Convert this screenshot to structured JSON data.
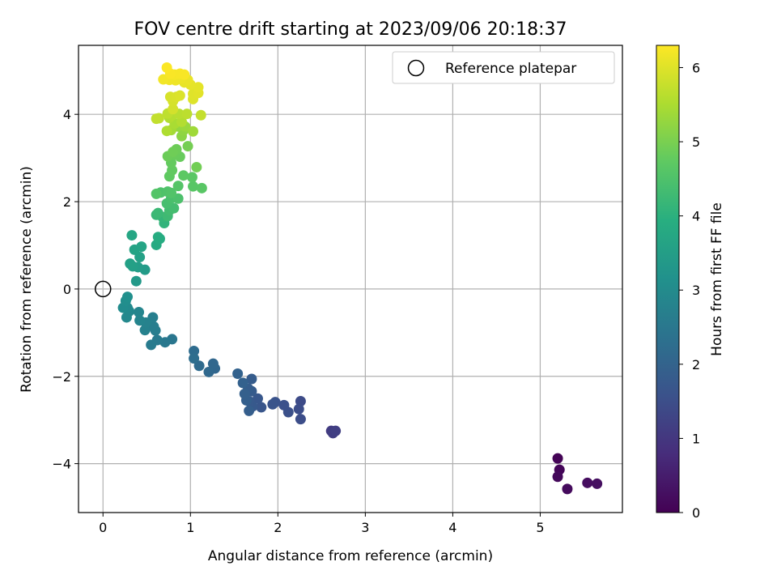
{
  "chart_data": {
    "type": "scatter",
    "title": "FOV centre drift starting at 2023/09/06 20:18:37",
    "xlabel": "Angular distance from reference (arcmin)",
    "ylabel": "Rotation from reference (arcmin)",
    "xlim": [
      -0.28,
      5.94
    ],
    "ylim": [
      -5.12,
      5.58
    ],
    "xticks": [
      0,
      1,
      2,
      3,
      4,
      5
    ],
    "yticks": [
      -4,
      -2,
      0,
      2,
      4
    ],
    "grid": true,
    "legend": {
      "label": "Reference platepar",
      "location": "top-right",
      "point": [
        0,
        0
      ]
    },
    "colorbar": {
      "label": "Hours from first FF file",
      "range": [
        0,
        6.3
      ],
      "ticks": [
        0,
        1,
        2,
        3,
        4,
        5,
        6
      ],
      "colormap": "viridis"
    },
    "points": [
      [
        5.2,
        -3.88,
        0.05
      ],
      [
        5.22,
        -4.14,
        0.08
      ],
      [
        5.2,
        -4.3,
        0.12
      ],
      [
        5.31,
        -4.58,
        0.18
      ],
      [
        5.54,
        -4.44,
        0.22
      ],
      [
        5.65,
        -4.46,
        0.25
      ],
      [
        2.61,
        -3.25,
        1.1
      ],
      [
        2.63,
        -3.3,
        1.15
      ],
      [
        2.66,
        -3.25,
        1.2
      ],
      [
        2.26,
        -2.57,
        1.45
      ],
      [
        2.24,
        -2.75,
        1.48
      ],
      [
        2.26,
        -2.98,
        1.5
      ],
      [
        2.12,
        -2.82,
        1.55
      ],
      [
        2.07,
        -2.66,
        1.58
      ],
      [
        1.97,
        -2.59,
        1.62
      ],
      [
        1.94,
        -2.64,
        1.66
      ],
      [
        1.81,
        -2.71,
        1.7
      ],
      [
        1.77,
        -2.51,
        1.73
      ],
      [
        1.71,
        -2.69,
        1.76
      ],
      [
        1.67,
        -2.57,
        1.8
      ],
      [
        1.7,
        -2.34,
        1.82
      ],
      [
        1.7,
        -2.06,
        1.85
      ],
      [
        1.66,
        -2.28,
        1.88
      ],
      [
        1.67,
        -2.79,
        1.9
      ],
      [
        1.64,
        -2.55,
        1.92
      ],
      [
        1.62,
        -2.4,
        1.95
      ],
      [
        1.6,
        -2.15,
        1.98
      ],
      [
        1.54,
        -1.94,
        2.0
      ],
      [
        1.28,
        -1.82,
        2.1
      ],
      [
        1.26,
        -1.71,
        2.12
      ],
      [
        1.21,
        -1.9,
        2.15
      ],
      [
        1.1,
        -1.76,
        2.2
      ],
      [
        1.04,
        -1.42,
        2.25
      ],
      [
        1.04,
        -1.59,
        2.28
      ],
      [
        0.79,
        -1.15,
        2.5
      ],
      [
        0.71,
        -1.22,
        2.55
      ],
      [
        0.62,
        -1.17,
        2.58
      ],
      [
        0.55,
        -1.28,
        2.62
      ],
      [
        0.6,
        -0.95,
        2.66
      ],
      [
        0.58,
        -0.86,
        2.7
      ],
      [
        0.57,
        -0.65,
        2.72
      ],
      [
        0.48,
        -0.94,
        2.76
      ],
      [
        0.49,
        -0.77,
        2.8
      ],
      [
        0.42,
        -0.72,
        2.84
      ],
      [
        0.41,
        -0.53,
        2.88
      ],
      [
        0.3,
        -0.51,
        2.92
      ],
      [
        0.27,
        -0.65,
        2.96
      ],
      [
        0.28,
        -0.43,
        3.0
      ],
      [
        0.23,
        -0.43,
        3.05
      ],
      [
        0.26,
        -0.27,
        3.1
      ],
      [
        0.28,
        -0.18,
        3.15
      ],
      [
        0.38,
        0.18,
        3.4
      ],
      [
        0.48,
        0.44,
        3.45
      ],
      [
        0.4,
        0.5,
        3.5
      ],
      [
        0.34,
        0.52,
        3.55
      ],
      [
        0.31,
        0.58,
        3.58
      ],
      [
        0.42,
        0.73,
        3.62
      ],
      [
        0.36,
        0.9,
        3.66
      ],
      [
        0.44,
        0.97,
        3.7
      ],
      [
        0.33,
        1.23,
        3.75
      ],
      [
        0.61,
        1.01,
        3.85
      ],
      [
        0.65,
        1.15,
        3.9
      ],
      [
        0.63,
        1.19,
        3.92
      ],
      [
        0.7,
        1.51,
        4.1
      ],
      [
        0.68,
        1.65,
        4.15
      ],
      [
        0.61,
        1.7,
        4.2
      ],
      [
        0.63,
        1.74,
        4.25
      ],
      [
        0.74,
        1.67,
        4.3
      ],
      [
        0.76,
        1.8,
        4.35
      ],
      [
        0.81,
        1.85,
        4.38
      ],
      [
        0.73,
        1.96,
        4.42
      ],
      [
        0.78,
        2.08,
        4.46
      ],
      [
        0.86,
        2.07,
        4.5
      ],
      [
        0.66,
        2.21,
        4.52
      ],
      [
        0.74,
        2.23,
        4.55
      ],
      [
        0.78,
        2.2,
        4.58
      ],
      [
        0.61,
        2.18,
        4.6
      ],
      [
        0.86,
        2.36,
        4.62
      ],
      [
        1.03,
        2.35,
        4.66
      ],
      [
        1.13,
        2.31,
        4.68
      ],
      [
        1.02,
        2.56,
        4.7
      ],
      [
        0.92,
        2.6,
        4.72
      ],
      [
        0.76,
        2.58,
        4.75
      ],
      [
        0.79,
        2.72,
        4.78
      ],
      [
        0.78,
        2.89,
        4.8
      ],
      [
        0.88,
        3.03,
        4.84
      ],
      [
        0.82,
        3.08,
        4.86
      ],
      [
        0.74,
        3.04,
        4.88
      ],
      [
        0.84,
        3.2,
        4.9
      ],
      [
        0.8,
        3.14,
        4.92
      ],
      [
        1.07,
        2.79,
        4.95
      ],
      [
        0.97,
        3.27,
        4.98
      ],
      [
        0.9,
        3.5,
        5.2
      ],
      [
        0.92,
        3.63,
        5.25
      ],
      [
        0.86,
        3.72,
        5.3
      ],
      [
        0.94,
        3.72,
        5.35
      ],
      [
        1.03,
        3.61,
        5.4
      ],
      [
        0.78,
        3.64,
        5.45
      ],
      [
        0.82,
        3.79,
        5.5
      ],
      [
        0.73,
        3.62,
        5.55
      ],
      [
        0.76,
        3.92,
        5.58
      ],
      [
        0.9,
        3.83,
        5.6
      ],
      [
        0.79,
        3.98,
        5.62
      ],
      [
        0.87,
        4.01,
        5.65
      ],
      [
        0.96,
        4.01,
        5.68
      ],
      [
        0.74,
        4.02,
        5.7
      ],
      [
        0.64,
        3.91,
        5.72
      ],
      [
        0.61,
        3.9,
        5.74
      ],
      [
        1.12,
        3.98,
        5.76
      ],
      [
        0.8,
        4.12,
        5.9
      ],
      [
        0.8,
        4.3,
        5.92
      ],
      [
        0.77,
        4.4,
        5.94
      ],
      [
        0.84,
        4.4,
        5.96
      ],
      [
        0.88,
        4.43,
        5.98
      ],
      [
        1.03,
        4.35,
        6.0
      ],
      [
        1.03,
        4.47,
        6.02
      ],
      [
        1.09,
        4.49,
        6.04
      ],
      [
        1.09,
        4.62,
        6.06
      ],
      [
        1.0,
        4.68,
        6.08
      ],
      [
        0.93,
        4.73,
        6.1
      ],
      [
        0.97,
        4.79,
        6.12
      ],
      [
        0.89,
        4.82,
        6.14
      ],
      [
        0.83,
        4.78,
        6.16
      ],
      [
        0.76,
        4.79,
        6.18
      ],
      [
        0.69,
        4.8,
        6.2
      ],
      [
        0.82,
        4.91,
        6.22
      ],
      [
        0.88,
        4.93,
        6.24
      ],
      [
        0.93,
        4.91,
        6.25
      ],
      [
        0.77,
        4.93,
        6.26
      ],
      [
        0.73,
        5.07,
        6.28
      ]
    ]
  }
}
